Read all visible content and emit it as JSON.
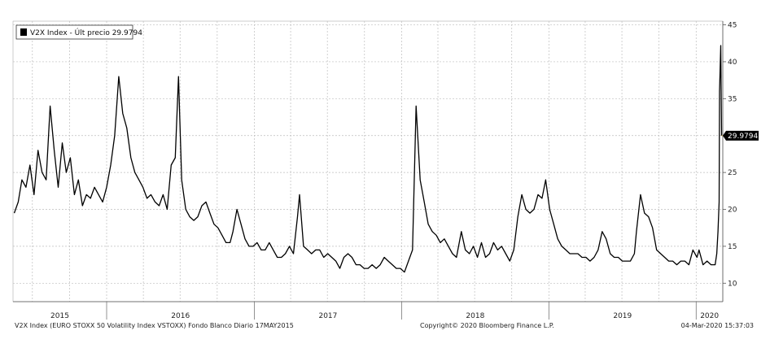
{
  "chart_data": {
    "type": "line",
    "legend": "V2X Index - Últ precio 29.9794",
    "last_value_label": "29.9794",
    "last_value": 29.9794,
    "y_ticks": [
      10,
      15,
      20,
      25,
      30,
      35,
      40,
      45
    ],
    "y_tick_labels": [
      "10",
      "15",
      "20",
      "25",
      "30",
      "35",
      "40",
      "45"
    ],
    "ylim": [
      7.5,
      45.5
    ],
    "x_year_labels": [
      "2015",
      "2016",
      "2017",
      "2018",
      "2019",
      "2020"
    ],
    "grid": true,
    "series": [
      {
        "color": "#000000",
        "x": [
          "2015-05-17",
          "2015-05-27",
          "2015-06-05",
          "2015-06-15",
          "2015-06-25",
          "2015-07-05",
          "2015-07-15",
          "2015-07-25",
          "2015-08-04",
          "2015-08-14",
          "2015-08-24",
          "2015-09-03",
          "2015-09-13",
          "2015-09-23",
          "2015-10-03",
          "2015-10-13",
          "2015-10-23",
          "2015-11-02",
          "2015-11-12",
          "2015-11-22",
          "2015-12-02",
          "2015-12-12",
          "2015-12-22",
          "2016-01-01",
          "2016-01-11",
          "2016-01-21",
          "2016-01-31",
          "2016-02-10",
          "2016-02-20",
          "2016-03-01",
          "2016-03-11",
          "2016-03-21",
          "2016-03-31",
          "2016-04-10",
          "2016-04-20",
          "2016-04-30",
          "2016-05-10",
          "2016-05-20",
          "2016-05-30",
          "2016-06-09",
          "2016-06-19",
          "2016-06-27",
          "2016-07-05",
          "2016-07-15",
          "2016-07-25",
          "2016-08-04",
          "2016-08-14",
          "2016-08-24",
          "2016-09-03",
          "2016-09-13",
          "2016-09-23",
          "2016-10-03",
          "2016-10-13",
          "2016-10-23",
          "2016-11-02",
          "2016-11-09",
          "2016-11-19",
          "2016-11-29",
          "2016-12-09",
          "2016-12-19",
          "2016-12-29",
          "2017-01-08",
          "2017-01-18",
          "2017-01-28",
          "2017-02-07",
          "2017-02-17",
          "2017-02-27",
          "2017-03-09",
          "2017-03-19",
          "2017-03-29",
          "2017-04-08",
          "2017-04-18",
          "2017-04-23",
          "2017-05-03",
          "2017-05-13",
          "2017-05-23",
          "2017-06-02",
          "2017-06-12",
          "2017-06-22",
          "2017-07-02",
          "2017-07-12",
          "2017-07-22",
          "2017-08-01",
          "2017-08-11",
          "2017-08-21",
          "2017-08-31",
          "2017-09-10",
          "2017-09-20",
          "2017-09-30",
          "2017-10-10",
          "2017-10-20",
          "2017-10-30",
          "2017-11-09",
          "2017-11-19",
          "2017-11-29",
          "2017-12-09",
          "2017-12-19",
          "2017-12-29",
          "2018-01-08",
          "2018-01-18",
          "2018-01-28",
          "2018-02-06",
          "2018-02-16",
          "2018-02-26",
          "2018-03-08",
          "2018-03-18",
          "2018-03-28",
          "2018-04-07",
          "2018-04-17",
          "2018-04-27",
          "2018-05-07",
          "2018-05-17",
          "2018-05-29",
          "2018-06-08",
          "2018-06-18",
          "2018-06-28",
          "2018-07-08",
          "2018-07-18",
          "2018-07-28",
          "2018-08-07",
          "2018-08-17",
          "2018-08-27",
          "2018-09-06",
          "2018-09-16",
          "2018-09-26",
          "2018-10-06",
          "2018-10-16",
          "2018-10-26",
          "2018-11-05",
          "2018-11-15",
          "2018-11-25",
          "2018-12-05",
          "2018-12-15",
          "2018-12-24",
          "2019-01-03",
          "2019-01-13",
          "2019-01-23",
          "2019-02-02",
          "2019-02-12",
          "2019-02-22",
          "2019-03-04",
          "2019-03-14",
          "2019-03-24",
          "2019-04-03",
          "2019-04-13",
          "2019-04-23",
          "2019-05-03",
          "2019-05-13",
          "2019-05-23",
          "2019-06-02",
          "2019-06-12",
          "2019-06-22",
          "2019-07-02",
          "2019-07-12",
          "2019-07-22",
          "2019-08-01",
          "2019-08-06",
          "2019-08-16",
          "2019-08-26",
          "2019-09-05",
          "2019-09-15",
          "2019-09-25",
          "2019-10-05",
          "2019-10-15",
          "2019-10-25",
          "2019-11-04",
          "2019-11-14",
          "2019-11-24",
          "2019-12-04",
          "2019-12-14",
          "2019-12-24",
          "2020-01-03",
          "2020-01-08",
          "2020-01-18",
          "2020-01-28",
          "2020-02-07",
          "2020-02-17",
          "2020-02-21",
          "2020-02-24",
          "2020-02-27",
          "2020-02-28",
          "2020-03-02",
          "2020-03-04"
        ],
        "values": [
          19.5,
          21,
          24,
          23,
          26,
          22,
          28,
          25,
          24,
          34,
          28,
          23,
          29,
          25,
          27,
          22,
          24,
          20.5,
          22,
          21.5,
          23,
          22,
          21,
          23,
          26,
          30,
          38,
          33,
          31,
          27,
          25,
          24,
          23,
          21.5,
          22,
          21,
          20.5,
          22,
          20,
          26,
          27,
          38,
          24,
          20,
          19,
          18.5,
          19,
          20.5,
          21,
          19.5,
          18,
          17.5,
          16.5,
          15.5,
          15.5,
          17,
          20,
          18,
          16,
          15,
          15,
          15.5,
          14.5,
          14.5,
          15.5,
          14.5,
          13.5,
          13.5,
          14,
          15,
          14,
          19,
          22,
          15,
          14.5,
          14,
          14.5,
          14.5,
          13.5,
          14,
          13.5,
          13,
          12,
          13.5,
          14,
          13.5,
          12.5,
          12.5,
          12,
          12,
          12.5,
          12,
          12.5,
          13.5,
          13,
          12.5,
          12,
          12,
          11.5,
          13,
          14.5,
          34,
          24,
          21,
          18,
          17,
          16.5,
          15.5,
          16,
          15,
          14,
          13.5,
          17,
          14.5,
          14,
          15,
          13.5,
          15.5,
          13.5,
          14,
          15.5,
          14.5,
          15,
          14,
          13,
          14.5,
          19,
          22,
          20,
          19.5,
          20,
          22,
          21.5,
          24,
          20,
          18,
          16,
          15,
          14.5,
          14,
          14,
          14,
          13.5,
          13.5,
          13,
          13.5,
          14.5,
          17,
          16,
          14,
          13.5,
          13.5,
          13,
          13,
          13,
          14,
          17,
          22,
          19.5,
          19,
          17.5,
          14.5,
          14,
          13.5,
          13,
          13,
          12.5,
          13,
          13,
          12.5,
          14.5,
          13.5,
          14.5,
          12.5,
          13,
          12.5,
          12.5,
          14,
          17,
          21,
          36,
          42.2,
          29.98
        ]
      }
    ]
  },
  "footer": {
    "left": "V2X Index (EURO STOXX 50 Volatility Index VSTOXX) Fondo Blanco  Diario 17MAY2015",
    "center": "Copyright© 2020 Bloomberg Finance L.P.",
    "right": "04-Mar-2020 15:37:03"
  }
}
